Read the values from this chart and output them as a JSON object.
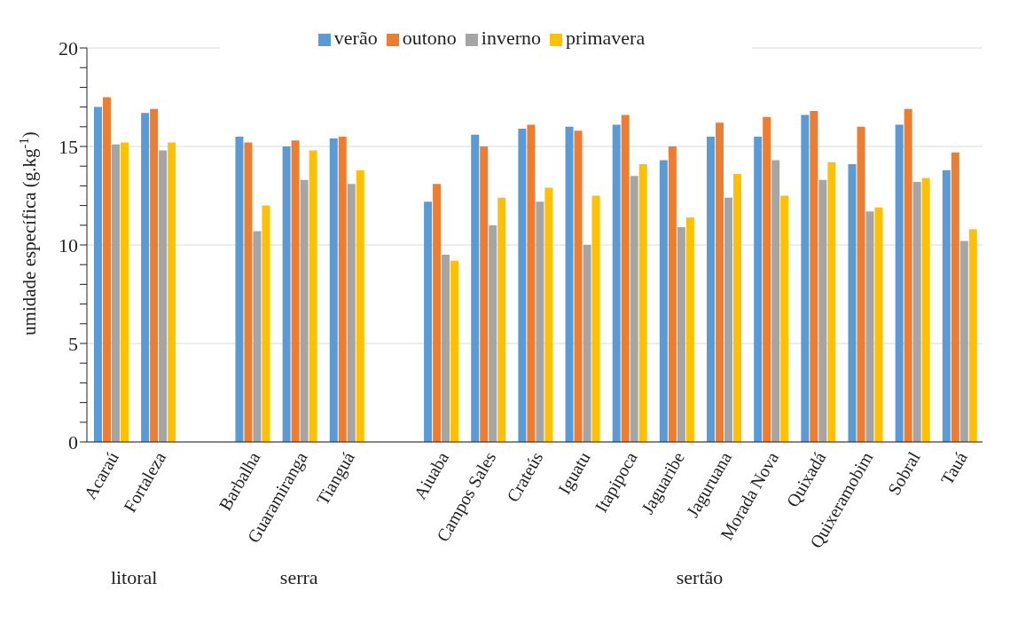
{
  "chart_data": {
    "type": "bar",
    "ylabel": "umidade específica (g.kg$^{-1}$)",
    "categories": [
      "Acaraú",
      "Fortaleza",
      null,
      "Barbalha",
      "Guaramiranga",
      "Tianguá",
      null,
      "Aiuaba",
      "Campos Sales",
      "Crateús",
      "Iguatu",
      "Itapipoca",
      "Jaguaribe",
      "Jaguruana",
      "Morada Nova",
      "Quixadá",
      "Quixeramobim",
      "Sobral",
      "Tauá"
    ],
    "series": [
      {
        "name": "verão",
        "color": "#5b9bd5",
        "values": [
          17.0,
          16.7,
          null,
          15.5,
          15.0,
          15.4,
          null,
          12.2,
          15.6,
          15.9,
          16.0,
          16.1,
          14.3,
          15.5,
          15.5,
          16.6,
          14.1,
          16.1,
          13.8
        ]
      },
      {
        "name": "outono",
        "color": "#ed7d31",
        "values": [
          17.5,
          16.9,
          null,
          15.2,
          15.3,
          15.5,
          null,
          13.1,
          15.0,
          16.1,
          15.8,
          16.6,
          15.0,
          16.2,
          16.5,
          16.8,
          16.0,
          16.9,
          14.7
        ]
      },
      {
        "name": "inverno",
        "color": "#a5a5a5",
        "values": [
          15.1,
          14.8,
          null,
          10.7,
          13.3,
          13.1,
          null,
          9.5,
          11.0,
          12.2,
          10.0,
          13.5,
          10.9,
          12.4,
          14.3,
          13.3,
          11.7,
          13.2,
          10.2
        ]
      },
      {
        "name": "primavera",
        "color": "#ffc000",
        "values": [
          15.2,
          15.2,
          null,
          12.0,
          14.8,
          13.8,
          null,
          9.2,
          12.4,
          12.9,
          12.5,
          14.1,
          11.4,
          13.6,
          12.5,
          14.2,
          11.9,
          13.4,
          10.8
        ]
      }
    ],
    "ylim": [
      0,
      20
    ],
    "yticks": [
      0,
      {
        "value": 1,
        "label": null
      },
      {
        "value": 2,
        "label": null
      },
      {
        "value": 3,
        "label": null
      },
      {
        "value": 4,
        "label": null
      },
      5,
      {
        "value": 6,
        "label": null
      },
      {
        "value": 7,
        "label": null
      },
      {
        "value": 8,
        "label": null
      },
      {
        "value": 9,
        "label": null
      },
      10,
      {
        "value": 11,
        "label": null
      },
      {
        "value": 12,
        "label": null
      },
      {
        "value": 13,
        "label": null
      },
      {
        "value": 14,
        "label": null
      },
      15,
      {
        "value": 16,
        "label": null
      },
      {
        "value": 17,
        "label": null
      },
      {
        "value": 18,
        "label": null
      },
      {
        "value": 19,
        "label": null
      },
      20
    ],
    "grid": "y",
    "legend": "top",
    "annotations": [
      "litoral",
      "serra",
      "sertão"
    ]
  }
}
